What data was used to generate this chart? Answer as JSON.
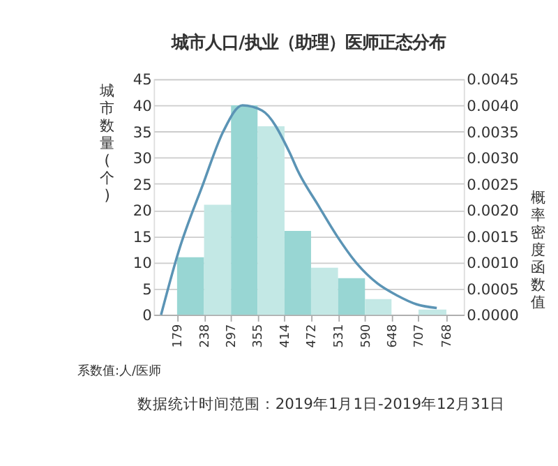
{
  "chart_data": {
    "type": "histogram",
    "title": "城市人口/执业（助理）医师正态分布",
    "xlabel": "系数值:人/医师",
    "ylabel": "城市数量(个)",
    "y2label": "概率密度函数值",
    "annotations": [
      "数据统计时间范围：2019年1月1日-2019年12月31日"
    ],
    "bins": [
      179,
      238,
      297,
      355,
      414,
      472,
      531,
      590,
      648,
      707,
      768
    ],
    "values": [
      11,
      21,
      40,
      36,
      16,
      9,
      7,
      3,
      0,
      1
    ],
    "colors": [
      "#98d6d3",
      "#c3e8e5",
      "#98d6d3",
      "#c3e8e5",
      "#98d6d3",
      "#c3e8e5",
      "#98d6d3",
      "#c3e8e5",
      "#98d6d3",
      "#c3e8e5"
    ],
    "series": [
      {
        "type": "line",
        "axis": "y2",
        "color": "#5b94b5",
        "x": [
          144,
          182,
          236,
          280,
          322,
          365,
          425,
          443,
          487,
          529,
          573,
          617,
          660,
          703,
          747
        ],
        "values": [
          0,
          0.0012,
          0.0025,
          0.0035,
          0.004,
          0.0039,
          0.0031,
          0.00275,
          0.0021,
          0.0015,
          0.00097,
          0.0006,
          0.00037,
          0.0002,
          0.00013
        ]
      }
    ],
    "xlim": [
      128,
      806
    ],
    "xticks": [
      179,
      238,
      297,
      355,
      414,
      472,
      531,
      590,
      648,
      707,
      768
    ],
    "ylim": [
      0,
      45
    ],
    "yticks": [
      0,
      5,
      10,
      15,
      20,
      25,
      30,
      35,
      40,
      45
    ],
    "y2lim": [
      0,
      0.0045
    ],
    "y2ticks": [
      {
        "value": 0,
        "label": "0.0000"
      },
      {
        "value": 0.0005,
        "label": "0.0005"
      },
      {
        "value": 0.001,
        "label": "0.0010"
      },
      {
        "value": 0.0015,
        "label": "0.0015"
      },
      {
        "value": 0.002,
        "label": "0.0020"
      },
      {
        "value": 0.0025,
        "label": "0.0025"
      },
      {
        "value": 0.003,
        "label": "0.0030"
      },
      {
        "value": 0.0035,
        "label": "0.0035"
      },
      {
        "value": 0.004,
        "label": "0.0040"
      },
      {
        "value": 0.0045,
        "label": "0.0045"
      }
    ],
    "grid": "y"
  }
}
